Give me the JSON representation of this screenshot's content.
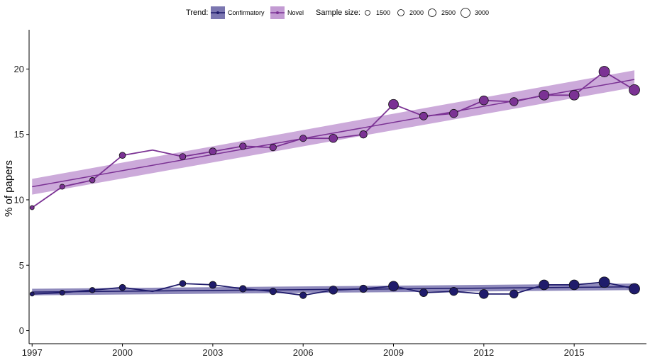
{
  "chart_data": {
    "type": "line",
    "ylabel": "% of papers",
    "xlabel": "",
    "xlim": [
      1996.9,
      2017.4
    ],
    "ylim": [
      -1.0,
      23.0
    ],
    "xticks": [
      1997,
      2000,
      2003,
      2006,
      2009,
      2012,
      2015
    ],
    "yticks": [
      0,
      5,
      10,
      15,
      20
    ],
    "grid": false,
    "legend_placement": "top",
    "legend": {
      "trend_title": "Trend:",
      "size_title": "Sample size:",
      "size_values": [
        1500,
        2000,
        2500,
        3000
      ]
    },
    "x": [
      1997,
      1998,
      1999,
      2000,
      2001,
      2002,
      2003,
      2004,
      2005,
      2006,
      2007,
      2008,
      2009,
      2010,
      2011,
      2012,
      2013,
      2014,
      2015,
      2016,
      2017
    ],
    "sample_size": [
      1300,
      1500,
      1600,
      1800,
      1400,
      1800,
      2000,
      1900,
      1900,
      1900,
      2300,
      2100,
      2700,
      2200,
      2300,
      2500,
      2300,
      2700,
      2700,
      2900,
      2900
    ],
    "series": [
      {
        "name": "Confirmatory",
        "color": "#1f1b6b",
        "band_color": "#7b76b0",
        "values": [
          2.8,
          2.9,
          3.1,
          3.3,
          3.0,
          3.6,
          3.5,
          3.2,
          3.0,
          2.7,
          3.1,
          3.2,
          3.4,
          2.9,
          3.0,
          2.8,
          2.8,
          3.5,
          3.5,
          3.7,
          3.2
        ],
        "trend": [
          2.95,
          3.35
        ],
        "band": [
          [
            2.7,
            3.2
          ],
          [
            3.1,
            3.6
          ]
        ]
      },
      {
        "name": "Novel",
        "color": "#7b3294",
        "band_color": "#c39bd3",
        "values": [
          9.4,
          11.0,
          11.5,
          13.4,
          13.8,
          13.3,
          13.7,
          14.1,
          14.0,
          14.7,
          14.7,
          15.0,
          17.3,
          16.4,
          16.6,
          17.6,
          17.5,
          18.0,
          18.0,
          19.8,
          18.4
        ],
        "trend": [
          11.0,
          19.2
        ],
        "band": [
          [
            10.4,
            11.6
          ],
          [
            18.6,
            19.9
          ]
        ]
      }
    ]
  }
}
